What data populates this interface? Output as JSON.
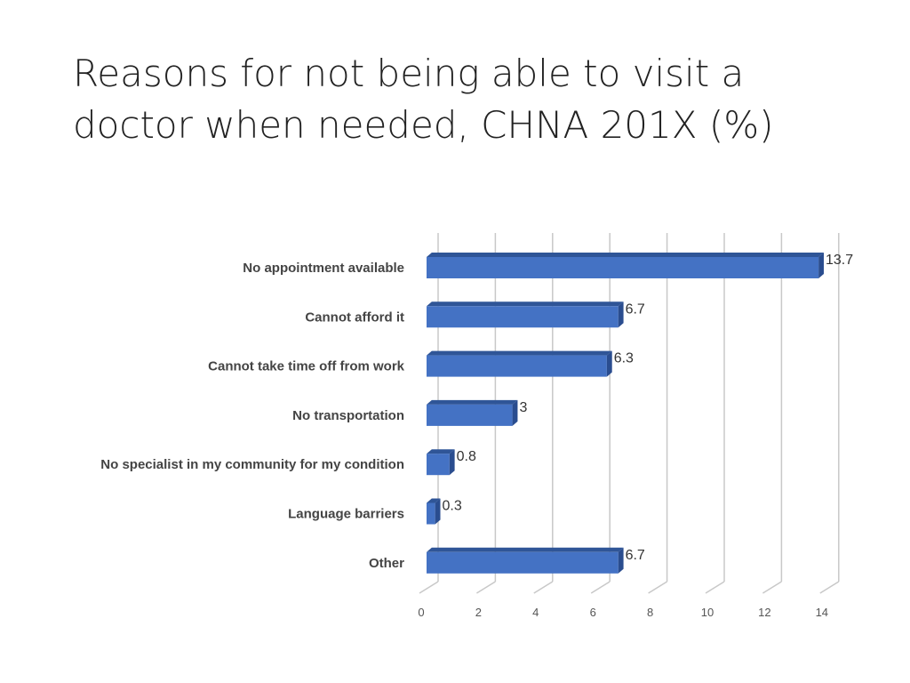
{
  "slide": {
    "title": "Reasons for not being able to visit a doctor when needed, CHNA 201X (%)"
  },
  "colors": {
    "bar_front": "#4472c4",
    "bar_top": "#2f5597",
    "bar_side": "#2a4d8f",
    "grid": "#c8c8c8",
    "background": "#ffffff"
  },
  "chart_data": {
    "type": "bar",
    "orientation": "horizontal",
    "style": "3d-clustered",
    "title": "",
    "xlabel": "",
    "ylabel": "",
    "xlim": [
      0,
      14
    ],
    "x_ticks": [
      0,
      2,
      4,
      6,
      8,
      10,
      12,
      14
    ],
    "grid": true,
    "legend": "none",
    "categories": [
      "No appointment available",
      "Cannot afford it",
      "Cannot take time off from work",
      "No transportation",
      "No specialist in my community for my condition",
      "Language barriers",
      "Other"
    ],
    "values": [
      13.7,
      6.7,
      6.3,
      3,
      0.8,
      0.3,
      6.7
    ],
    "data_labels": [
      "13.7",
      "6.7",
      "6.3",
      "3",
      "0.8",
      "0.3",
      "6.7"
    ]
  }
}
